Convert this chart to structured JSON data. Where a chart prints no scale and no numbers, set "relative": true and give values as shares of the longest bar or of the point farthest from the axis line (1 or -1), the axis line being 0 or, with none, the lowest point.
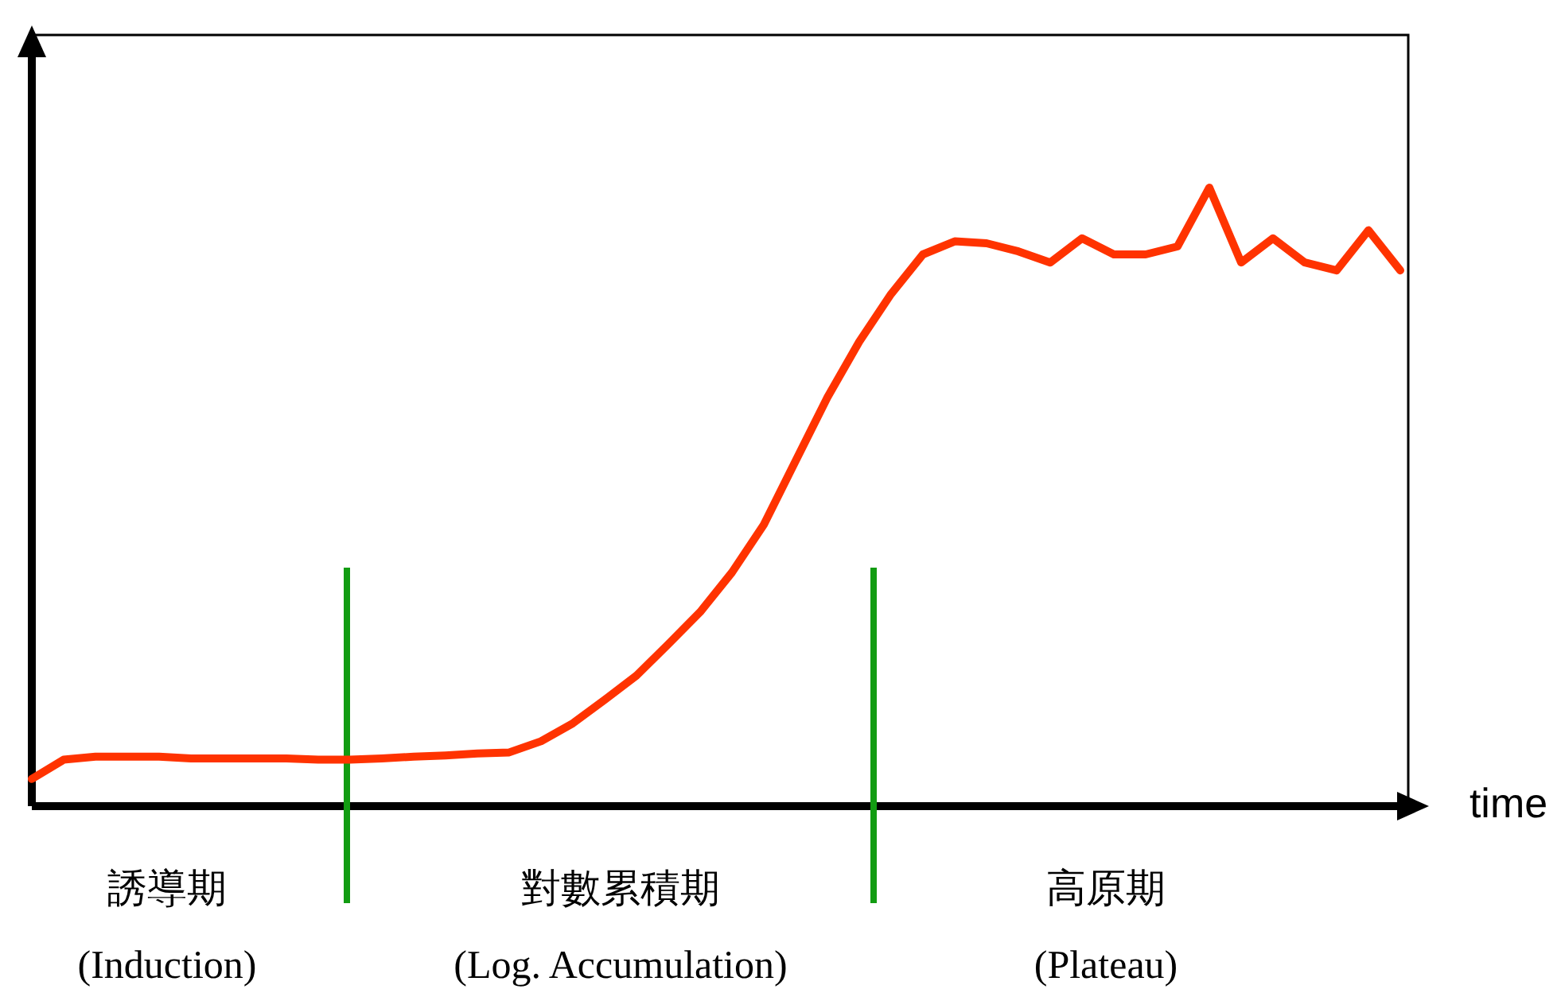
{
  "chart_data": {
    "type": "line",
    "relative": true,
    "xlabel": "time",
    "categories": [
      null,
      null,
      null,
      null,
      null,
      null,
      null,
      null,
      null,
      null,
      null,
      null,
      null,
      null,
      null,
      null,
      null,
      null,
      null,
      null,
      null,
      null,
      null,
      null,
      null,
      null,
      null,
      null,
      null,
      null,
      null,
      null,
      null,
      null,
      null,
      null,
      null,
      null,
      null,
      null,
      null,
      null,
      null,
      null
    ],
    "series": [
      {
        "color": "#ff3300",
        "values": [
          0.044,
          0.075,
          0.08,
          0.08,
          0.08,
          0.077,
          0.077,
          0.077,
          0.077,
          0.075,
          0.075,
          0.077,
          0.08,
          0.082,
          0.085,
          0.087,
          0.105,
          0.134,
          0.172,
          0.211,
          0.262,
          0.314,
          0.378,
          0.455,
          0.558,
          0.661,
          0.751,
          0.828,
          0.892,
          0.913,
          0.91,
          0.897,
          0.879,
          0.918,
          0.892,
          0.892,
          0.905,
          1.0,
          0.879,
          0.918,
          0.879,
          0.866,
          0.931,
          0.866
        ]
      }
    ],
    "annotations": [
      "誘導期\n(Induction)",
      "對數累積期\n(Log. Accumulation)",
      "高原期\n(Plateau)"
    ]
  }
}
